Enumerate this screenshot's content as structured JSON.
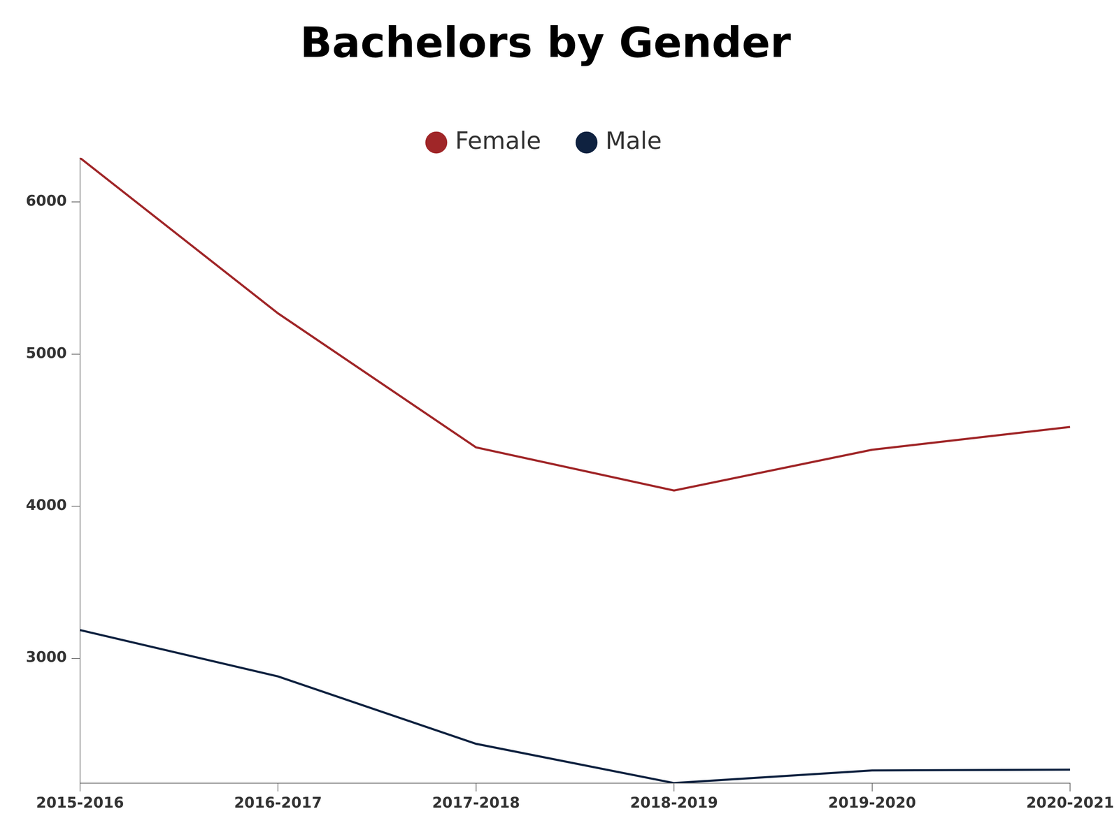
{
  "chart_data": {
    "type": "line",
    "title": "Bachelors by Gender",
    "categories": [
      "2015-2016",
      "2016-2017",
      "2017-2018",
      "2018-2019",
      "2019-2020",
      "2020-2021"
    ],
    "series": [
      {
        "name": "Female",
        "color": "#a02628",
        "values": [
          6290,
          5268,
          4387,
          4103,
          4371,
          4521
        ]
      },
      {
        "name": "Male",
        "color": "#0f2240",
        "values": [
          3186,
          2881,
          2438,
          2180,
          2263,
          2268
        ]
      }
    ],
    "ylim": [
      2180,
      6290
    ],
    "yticks": [
      3000,
      4000,
      5000,
      6000
    ],
    "grid": false,
    "legend": "top"
  }
}
